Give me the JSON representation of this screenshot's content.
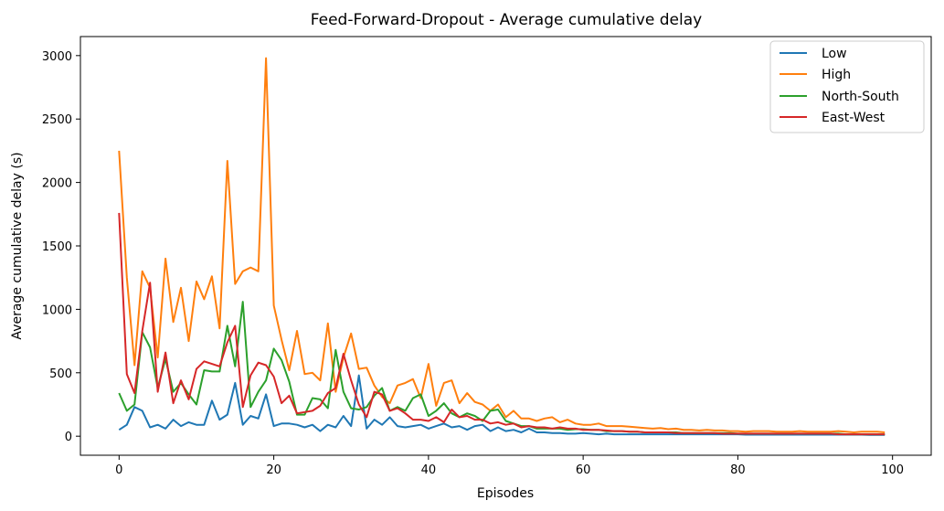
{
  "chart_data": {
    "type": "line",
    "title": "Feed-Forward-Dropout - Average cumulative delay",
    "xlabel": "Episodes",
    "ylabel": "Average cumulative delay (s)",
    "xlim": [
      -5,
      105
    ],
    "ylim": [
      -150,
      3150
    ],
    "xticks": [
      0,
      20,
      40,
      60,
      80,
      100
    ],
    "yticks": [
      0,
      500,
      1000,
      1500,
      2000,
      2500,
      3000
    ],
    "grid": false,
    "legend_position": "top-right",
    "series": [
      {
        "name": "Low",
        "color": "#1f77b4",
        "values": [
          50,
          90,
          230,
          200,
          70,
          90,
          60,
          130,
          80,
          110,
          90,
          90,
          280,
          130,
          170,
          420,
          90,
          160,
          140,
          330,
          80,
          100,
          100,
          90,
          70,
          90,
          40,
          90,
          70,
          160,
          80,
          480,
          60,
          130,
          90,
          150,
          80,
          70,
          80,
          90,
          60,
          80,
          100,
          70,
          80,
          50,
          80,
          90,
          40,
          70,
          40,
          50,
          30,
          60,
          30,
          30,
          25,
          25,
          20,
          20,
          25,
          20,
          15,
          20,
          15,
          15,
          15,
          15,
          15,
          15,
          15,
          15,
          15,
          15,
          15,
          15,
          15,
          15,
          15,
          15,
          15,
          12,
          12,
          12,
          12,
          12,
          12,
          12,
          12,
          12,
          12,
          12,
          12,
          12,
          12,
          12,
          12,
          10,
          10,
          10
        ]
      },
      {
        "name": "High",
        "color": "#ff7f0e",
        "values": [
          2250,
          1250,
          560,
          1300,
          1170,
          620,
          1400,
          900,
          1170,
          750,
          1220,
          1080,
          1260,
          850,
          2170,
          1200,
          1300,
          1330,
          1300,
          2980,
          1030,
          760,
          520,
          830,
          490,
          500,
          440,
          890,
          350,
          620,
          810,
          530,
          540,
          400,
          310,
          260,
          400,
          420,
          450,
          300,
          570,
          240,
          420,
          440,
          260,
          340,
          270,
          250,
          200,
          250,
          150,
          200,
          140,
          140,
          120,
          140,
          150,
          110,
          130,
          100,
          90,
          90,
          100,
          80,
          80,
          80,
          75,
          70,
          65,
          60,
          65,
          55,
          60,
          50,
          50,
          45,
          50,
          45,
          45,
          40,
          40,
          35,
          40,
          40,
          40,
          35,
          35,
          35,
          40,
          35,
          35,
          35,
          35,
          40,
          35,
          30,
          35,
          35,
          35,
          30
        ]
      },
      {
        "name": "North-South",
        "color": "#2ca02c",
        "values": [
          340,
          200,
          250,
          820,
          700,
          380,
          610,
          350,
          420,
          330,
          250,
          520,
          510,
          510,
          870,
          550,
          1060,
          230,
          350,
          440,
          690,
          600,
          430,
          170,
          170,
          300,
          290,
          220,
          680,
          350,
          220,
          210,
          230,
          320,
          380,
          200,
          230,
          200,
          300,
          330,
          160,
          200,
          260,
          180,
          150,
          180,
          160,
          120,
          200,
          210,
          120,
          100,
          80,
          80,
          60,
          60,
          60,
          60,
          50,
          55,
          55,
          50,
          50,
          40,
          40,
          40,
          35,
          35,
          30,
          30,
          30,
          30,
          30,
          25,
          25,
          25,
          25,
          25,
          25,
          25,
          20,
          20,
          20,
          20,
          20,
          20,
          20,
          20,
          20,
          20,
          20,
          20,
          20,
          20,
          15,
          15,
          15,
          15,
          15,
          15
        ]
      },
      {
        "name": "East-West",
        "color": "#d62728",
        "values": [
          1760,
          490,
          340,
          830,
          1210,
          350,
          660,
          260,
          440,
          290,
          530,
          590,
          570,
          550,
          740,
          870,
          230,
          480,
          580,
          560,
          470,
          260,
          320,
          180,
          190,
          200,
          240,
          340,
          380,
          650,
          440,
          250,
          150,
          350,
          330,
          200,
          220,
          180,
          130,
          130,
          120,
          150,
          110,
          210,
          150,
          160,
          130,
          130,
          100,
          110,
          90,
          100,
          70,
          80,
          70,
          70,
          60,
          70,
          60,
          60,
          50,
          50,
          50,
          45,
          40,
          40,
          35,
          35,
          30,
          30,
          30,
          30,
          25,
          25,
          25,
          25,
          25,
          25,
          20,
          20,
          20,
          20,
          20,
          20,
          20,
          20,
          20,
          20,
          20,
          20,
          20,
          20,
          20,
          15,
          15,
          15,
          15,
          15,
          15,
          15
        ]
      }
    ]
  }
}
